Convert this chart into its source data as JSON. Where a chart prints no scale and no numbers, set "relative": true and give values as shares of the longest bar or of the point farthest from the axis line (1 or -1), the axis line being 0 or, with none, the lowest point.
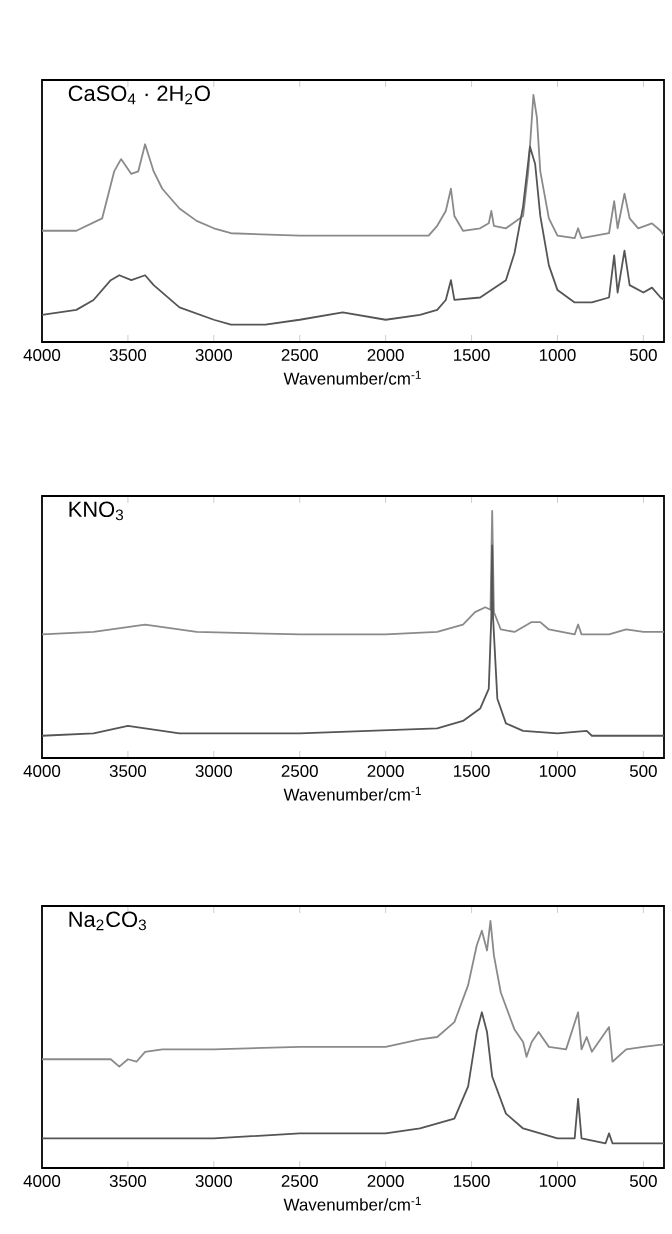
{
  "chart_data": [
    {
      "type": "line",
      "title": "CaSO$_{4}$ · 2H$_{2}$O",
      "xlabel": "Wavenumber/cm$^{-1}$",
      "relative": true,
      "xlim": [
        4000,
        380
      ],
      "xticks": [
        4000,
        3500,
        3000,
        2500,
        2000,
        1500,
        1000,
        500
      ],
      "marker": "none",
      "line_style": "solid",
      "series": [
        {
          "color": "#8a8a8a",
          "x": [
            4000,
            3800,
            3650,
            3580,
            3540,
            3480,
            3440,
            3400,
            3350,
            3300,
            3200,
            3100,
            3000,
            2900,
            2500,
            2000,
            1750,
            1700,
            1650,
            1620,
            1600,
            1550,
            1450,
            1400,
            1385,
            1370,
            1300,
            1200,
            1170,
            1140,
            1120,
            1100,
            1050,
            1000,
            900,
            880,
            860,
            700,
            670,
            650,
            610,
            580,
            530,
            450,
            400,
            380
          ],
          "values": [
            0.45,
            0.45,
            0.5,
            0.69,
            0.74,
            0.68,
            0.69,
            0.8,
            0.69,
            0.62,
            0.54,
            0.49,
            0.46,
            0.44,
            0.43,
            0.43,
            0.43,
            0.47,
            0.53,
            0.62,
            0.51,
            0.45,
            0.46,
            0.48,
            0.53,
            0.47,
            0.46,
            0.51,
            0.69,
            1,
            0.91,
            0.69,
            0.5,
            0.43,
            0.42,
            0.46,
            0.42,
            0.44,
            0.57,
            0.46,
            0.6,
            0.5,
            0.46,
            0.48,
            0.45,
            0.43
          ]
        },
        {
          "color": "#555555",
          "x": [
            4000,
            3800,
            3700,
            3600,
            3550,
            3480,
            3400,
            3350,
            3200,
            3000,
            2900,
            2700,
            2500,
            2250,
            2000,
            1800,
            1700,
            1650,
            1620,
            1600,
            1450,
            1300,
            1250,
            1200,
            1160,
            1130,
            1100,
            1050,
            1000,
            900,
            800,
            700,
            670,
            650,
            610,
            580,
            500,
            450,
            400,
            380
          ],
          "values": [
            0.11,
            0.13,
            0.17,
            0.25,
            0.27,
            0.25,
            0.27,
            0.23,
            0.14,
            0.09,
            0.07,
            0.07,
            0.09,
            0.12,
            0.09,
            0.11,
            0.13,
            0.17,
            0.25,
            0.17,
            0.18,
            0.25,
            0.36,
            0.55,
            0.79,
            0.72,
            0.51,
            0.31,
            0.21,
            0.16,
            0.16,
            0.18,
            0.35,
            0.2,
            0.37,
            0.23,
            0.2,
            0.22,
            0.18,
            0.17
          ]
        }
      ]
    },
    {
      "type": "line",
      "title": "KNO$_{3}$",
      "xlabel": "Wavenumber/cm$^{-1}$",
      "relative": true,
      "xlim": [
        4000,
        380
      ],
      "xticks": [
        4000,
        3500,
        3000,
        2500,
        2000,
        1500,
        1000,
        500
      ],
      "marker": "none",
      "line_style": "solid",
      "series": [
        {
          "color": "#8a8a8a",
          "x": [
            4000,
            3700,
            3400,
            3100,
            2500,
            2000,
            1700,
            1550,
            1480,
            1420,
            1390,
            1380,
            1370,
            1330,
            1250,
            1150,
            1100,
            1050,
            900,
            880,
            860,
            700,
            600,
            500,
            380
          ],
          "values": [
            0.5,
            0.51,
            0.54,
            0.51,
            0.5,
            0.5,
            0.51,
            0.54,
            0.59,
            0.61,
            0.6,
            1,
            0.59,
            0.52,
            0.51,
            0.55,
            0.55,
            0.52,
            0.5,
            0.54,
            0.5,
            0.5,
            0.52,
            0.51,
            0.51
          ]
        },
        {
          "color": "#555555",
          "x": [
            4000,
            3700,
            3500,
            3400,
            3200,
            2500,
            1700,
            1550,
            1450,
            1400,
            1385,
            1380,
            1375,
            1350,
            1300,
            1200,
            1000,
            830,
            800,
            380
          ],
          "values": [
            0.09,
            0.1,
            0.13,
            0.12,
            0.1,
            0.1,
            0.12,
            0.15,
            0.2,
            0.28,
            0.57,
            0.86,
            0.57,
            0.24,
            0.14,
            0.11,
            0.1,
            0.11,
            0.09,
            0.09
          ]
        }
      ]
    },
    {
      "type": "line",
      "title": "Na$_{2}$CO$_{3}$",
      "xlabel": "Wavenumber/cm$^{-1}$",
      "relative": true,
      "xlim": [
        4000,
        380
      ],
      "xticks": [
        4000,
        3500,
        3000,
        2500,
        2000,
        1500,
        1000,
        500
      ],
      "marker": "none",
      "line_style": "solid",
      "series": [
        {
          "color": "#8a8a8a",
          "x": [
            4000,
            3600,
            3550,
            3500,
            3450,
            3400,
            3300,
            3000,
            2500,
            2000,
            1800,
            1700,
            1600,
            1520,
            1470,
            1440,
            1410,
            1390,
            1370,
            1330,
            1250,
            1200,
            1180,
            1150,
            1110,
            1050,
            950,
            880,
            860,
            830,
            800,
            700,
            680,
            600,
            500,
            380
          ],
          "values": [
            0.44,
            0.44,
            0.41,
            0.44,
            0.43,
            0.47,
            0.48,
            0.48,
            0.49,
            0.49,
            0.52,
            0.53,
            0.59,
            0.74,
            0.9,
            0.96,
            0.88,
            1,
            0.86,
            0.71,
            0.56,
            0.51,
            0.45,
            0.51,
            0.55,
            0.49,
            0.48,
            0.63,
            0.48,
            0.53,
            0.47,
            0.57,
            0.43,
            0.48,
            0.49,
            0.5
          ]
        },
        {
          "color": "#555555",
          "x": [
            4000,
            3000,
            2500,
            2000,
            1800,
            1600,
            1520,
            1470,
            1440,
            1410,
            1380,
            1300,
            1200,
            1000,
            900,
            880,
            860,
            720,
            700,
            680,
            500,
            380
          ],
          "values": [
            0.12,
            0.12,
            0.14,
            0.14,
            0.16,
            0.2,
            0.33,
            0.55,
            0.63,
            0.55,
            0.37,
            0.22,
            0.16,
            0.12,
            0.12,
            0.28,
            0.12,
            0.1,
            0.14,
            0.1,
            0.1,
            0.1
          ]
        }
      ]
    }
  ]
}
